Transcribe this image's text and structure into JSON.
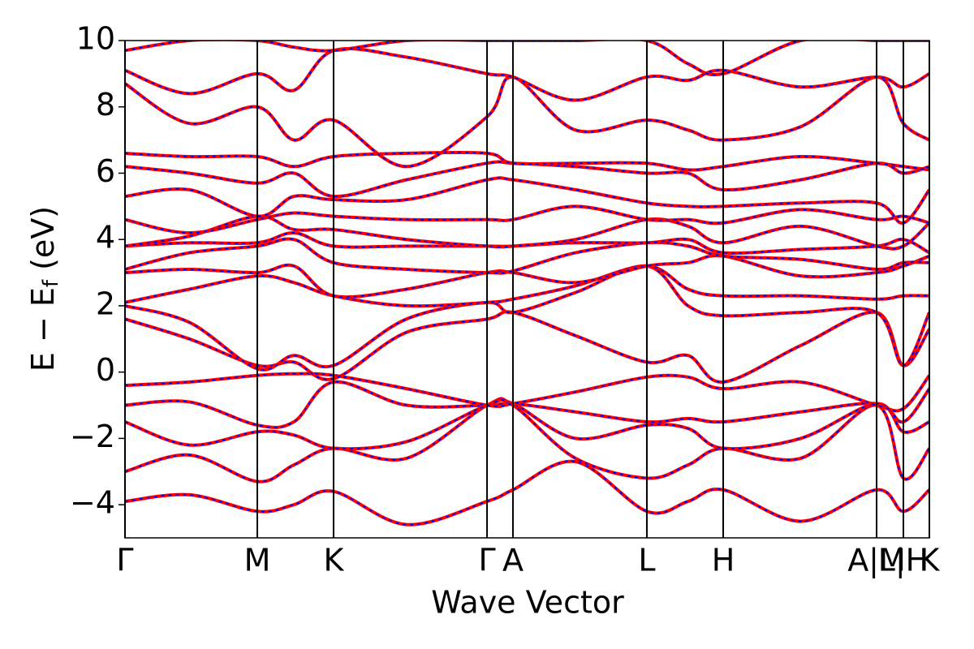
{
  "chart_data": {
    "type": "line",
    "xlabel": "Wave Vector",
    "ylabel": [
      "E − E",
      "f",
      " (eV)"
    ],
    "color": "#ff0000",
    "overlay_color": "#0000ff",
    "xlim": [
      0,
      1
    ],
    "ylim": [
      -5,
      10
    ],
    "xticks": [
      {
        "value": 0,
        "label": "Γ"
      },
      {
        "value": 0.1645,
        "label": "M"
      },
      {
        "value": 0.2593,
        "label": "K"
      },
      {
        "value": 0.4501,
        "label": "Γ"
      },
      {
        "value": 0.4823,
        "label": "A"
      },
      {
        "value": 0.6488,
        "label": "L"
      },
      {
        "value": 0.7437,
        "label": "H"
      },
      {
        "value": 0.9344,
        "label": "A|M"
      },
      {
        "value": 0.9677,
        "label": "L|H"
      },
      {
        "value": 1,
        "label": "K"
      }
    ],
    "yticks": [
      {
        "value": -4,
        "label": "−4"
      },
      {
        "value": -2,
        "label": "−2"
      },
      0,
      2,
      4,
      6,
      8,
      10
    ],
    "x": [
      0,
      0.08,
      0.1645,
      0.21,
      0.2593,
      0.35,
      0.4501,
      0.4823,
      0.56,
      0.6488,
      0.7,
      0.7437,
      0.84,
      0.9344,
      0.9677,
      1.0
    ],
    "series": [
      {
        "values": [
          -3.9,
          -3.7,
          -4.2,
          -4.0,
          -3.6,
          -4.6,
          -3.9,
          -3.55,
          -2.7,
          -4.2,
          -3.9,
          -3.55,
          -4.5,
          -3.55,
          -4.2,
          -3.55
        ]
      },
      {
        "values": [
          -3.0,
          -2.5,
          -3.3,
          -2.8,
          -2.3,
          -2.6,
          -1.0,
          -1.0,
          -2.6,
          -3.2,
          -2.8,
          -2.3,
          -2.6,
          -1.0,
          -3.2,
          -2.3
        ]
      },
      {
        "values": [
          -1.5,
          -2.2,
          -1.8,
          -1.9,
          -2.3,
          -2.1,
          -1.0,
          -0.95,
          -2.0,
          -1.6,
          -1.7,
          -2.3,
          -2.0,
          -0.95,
          -1.8,
          -1.5
        ]
      },
      {
        "values": [
          -1.0,
          -0.9,
          -1.6,
          -1.5,
          -0.3,
          -1.0,
          -1.0,
          -0.95,
          -1.2,
          -1.5,
          -1.4,
          -1.5,
          -1.2,
          -0.95,
          -1.5,
          -0.5
        ]
      },
      {
        "values": [
          -0.4,
          -0.3,
          -0.1,
          -0.05,
          -0.1,
          -0.5,
          -1.0,
          -0.95,
          -0.6,
          -0.15,
          -0.15,
          -0.5,
          -0.3,
          -1.0,
          -1.1,
          -0.1
        ]
      },
      {
        "values": [
          1.6,
          1.0,
          0.2,
          0.3,
          -0.2,
          1.2,
          1.6,
          1.8,
          1.1,
          0.3,
          0.5,
          -0.3,
          0.8,
          1.8,
          0.2,
          1.3
        ]
      },
      {
        "values": [
          2.0,
          1.5,
          0.1,
          0.5,
          0.2,
          1.6,
          2.1,
          1.8,
          2.4,
          3.2,
          2.0,
          1.7,
          1.8,
          1.8,
          0.2,
          1.8
        ]
      },
      {
        "values": [
          2.1,
          2.5,
          2.9,
          2.7,
          2.3,
          2.0,
          2.1,
          2.2,
          2.6,
          3.2,
          2.5,
          2.3,
          2.3,
          2.2,
          2.3,
          2.3
        ]
      },
      {
        "values": [
          3.0,
          3.1,
          3.0,
          3.2,
          2.3,
          2.5,
          3.0,
          3.0,
          2.7,
          3.2,
          3.3,
          3.5,
          2.9,
          3.0,
          3.2,
          3.5
        ]
      },
      {
        "values": [
          3.1,
          3.6,
          3.8,
          4.0,
          3.3,
          3.1,
          3.0,
          3.05,
          3.6,
          3.9,
          3.8,
          3.5,
          3.4,
          3.1,
          3.3,
          3.3
        ]
      },
      {
        "values": [
          3.8,
          3.9,
          3.9,
          4.2,
          3.8,
          3.8,
          3.8,
          3.8,
          3.9,
          3.9,
          4.0,
          3.6,
          3.7,
          3.8,
          4.0,
          3.6
        ]
      },
      {
        "values": [
          3.8,
          4.1,
          4.7,
          4.3,
          4.3,
          4.0,
          3.8,
          3.8,
          4.0,
          4.6,
          4.4,
          3.9,
          4.4,
          3.8,
          3.8,
          4.5
        ]
      },
      {
        "values": [
          4.6,
          4.2,
          4.6,
          4.8,
          4.7,
          4.6,
          4.6,
          4.6,
          5.0,
          4.6,
          4.6,
          4.5,
          4.9,
          4.6,
          4.7,
          4.5
        ]
      },
      {
        "values": [
          5.3,
          5.5,
          4.7,
          5.3,
          5.2,
          5.2,
          5.8,
          5.8,
          5.5,
          5.1,
          5.0,
          5.0,
          5.1,
          5.1,
          4.5,
          5.5
        ]
      },
      {
        "values": [
          6.2,
          6.0,
          5.7,
          6.0,
          5.3,
          5.8,
          6.3,
          6.3,
          6.2,
          6.0,
          6.0,
          5.5,
          5.8,
          6.3,
          6.0,
          6.2
        ]
      },
      {
        "values": [
          6.6,
          6.5,
          6.5,
          6.2,
          6.5,
          6.6,
          6.6,
          6.3,
          6.3,
          6.3,
          6.1,
          6.2,
          6.5,
          6.3,
          6.2,
          6.1
        ]
      },
      {
        "values": [
          8.7,
          7.5,
          8.0,
          7.0,
          7.6,
          6.2,
          7.7,
          8.9,
          7.3,
          7.6,
          7.3,
          7.0,
          7.4,
          8.9,
          7.5,
          7.0
        ]
      },
      {
        "values": [
          9.1,
          8.4,
          9.0,
          8.5,
          9.7,
          9.5,
          9.0,
          8.9,
          8.2,
          8.9,
          8.8,
          9.1,
          8.6,
          8.9,
          8.6,
          9.0
        ]
      },
      {
        "values": [
          9.7,
          10,
          10,
          9.8,
          9.7,
          10,
          10,
          10,
          10,
          10,
          9.3,
          9.0,
          10,
          10,
          10,
          10
        ]
      }
    ]
  }
}
